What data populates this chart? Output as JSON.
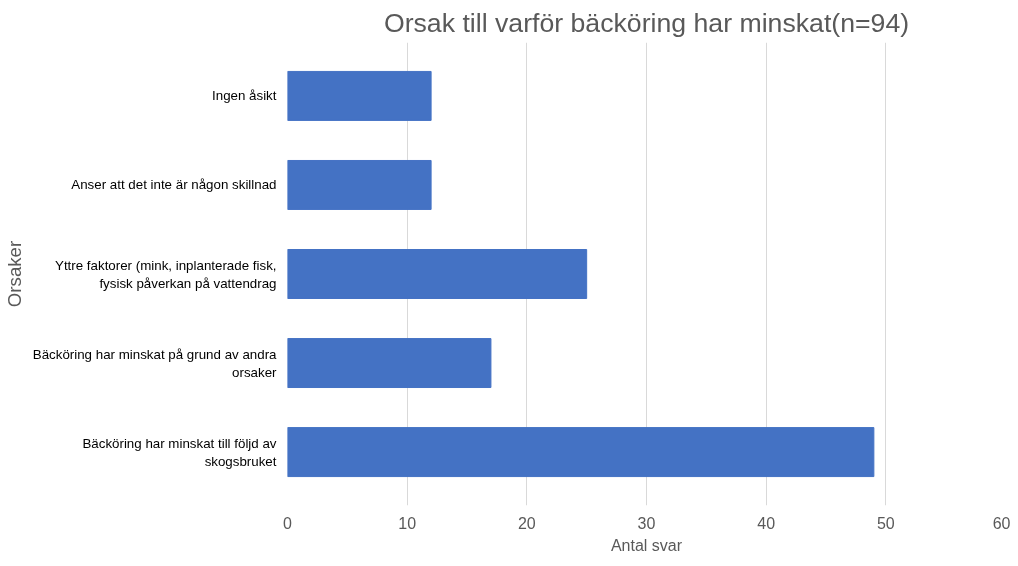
{
  "chart_data": {
    "type": "bar",
    "orientation": "horizontal",
    "title": "Orsak till varför bäcköring har minskat(n=94)",
    "xlabel": "Antal svar",
    "ylabel": "Orsaker",
    "categories": [
      "Ingen åsikt",
      "Anser att det inte är någon skillnad",
      "Yttre faktorer (mink, inplanterade fisk, fysisk påverkan på vattendrag",
      "Bäcköring har minskat på grund av andra orsaker",
      "Bäcköring har minskat till följd av skogsbruket"
    ],
    "values": [
      12,
      12,
      25,
      17,
      49
    ],
    "color": "#4472c4",
    "xlim": [
      0,
      60
    ],
    "xticks": [
      0,
      10,
      20,
      30,
      40,
      50,
      60
    ],
    "grid": "x"
  }
}
